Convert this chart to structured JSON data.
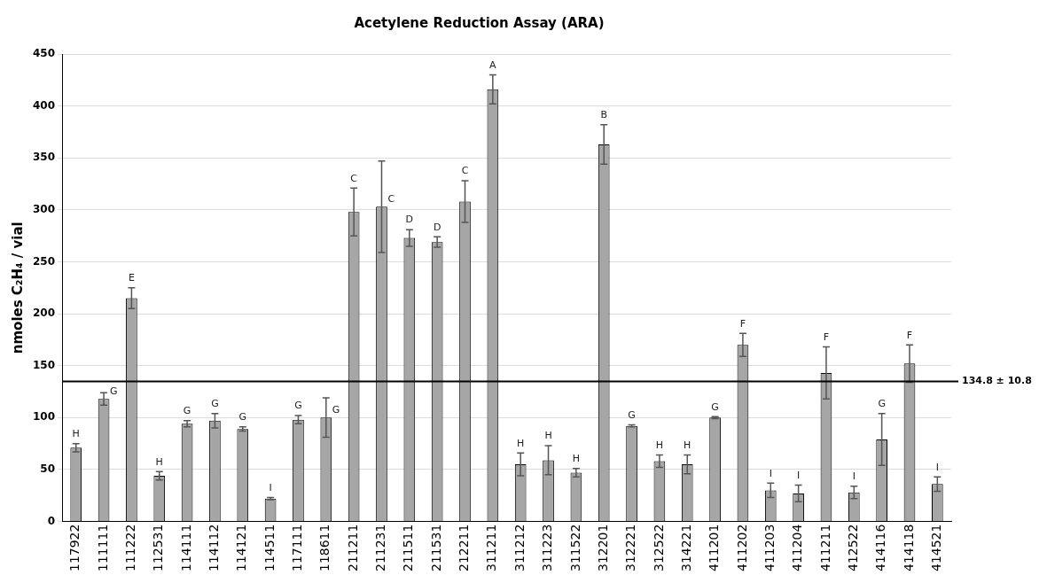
{
  "chart_data": {
    "type": "bar",
    "title": "Acetylene Reduction Assay (ARA)",
    "ylabel": "nmoles C₂H₄ / vial",
    "categories": [
      "117922",
      "111111",
      "111222",
      "112531",
      "114111",
      "114112",
      "114121",
      "114511",
      "117111",
      "118611",
      "211211",
      "211231",
      "211511",
      "211531",
      "212211",
      "311211",
      "311212",
      "311223",
      "311522",
      "312201",
      "312221",
      "312522",
      "314221",
      "411201",
      "411202",
      "411203",
      "411204",
      "411211",
      "412522",
      "414116",
      "414118",
      "414521"
    ],
    "values": [
      71,
      118,
      215,
      44,
      94,
      97,
      89,
      22,
      98,
      100,
      298,
      303,
      273,
      269,
      308,
      416,
      55,
      59,
      47,
      363,
      92,
      58,
      55,
      100,
      170,
      30,
      27,
      143,
      28,
      79,
      152,
      36
    ],
    "errors": [
      4,
      6,
      10,
      4,
      3,
      7,
      2,
      1,
      4,
      19,
      23,
      44,
      8,
      5,
      20,
      14,
      11,
      14,
      4,
      19,
      1,
      6,
      9,
      1,
      11,
      7,
      8,
      25,
      6,
      25,
      18,
      7
    ],
    "value_labels": [
      "H",
      "G",
      "E",
      "H",
      "G",
      "G",
      "G",
      "I",
      "G",
      "G",
      "C",
      "C",
      "D",
      "D",
      "C",
      "A",
      "H",
      "H",
      "H",
      "B",
      "G",
      "H",
      "H",
      "G",
      "F",
      "I",
      "I",
      "F",
      "I",
      "G",
      "F",
      "I"
    ],
    "color": "#a6a6a6",
    "ylim": [
      0,
      450
    ],
    "yticks": [
      0,
      50,
      100,
      150,
      200,
      250,
      300,
      350,
      400,
      450
    ],
    "grid": "y",
    "legend": false,
    "ref_lines": [
      {
        "axis": "y",
        "value": 134.8,
        "label": "134.8 ± 10.8",
        "color": "#000000"
      }
    ]
  }
}
